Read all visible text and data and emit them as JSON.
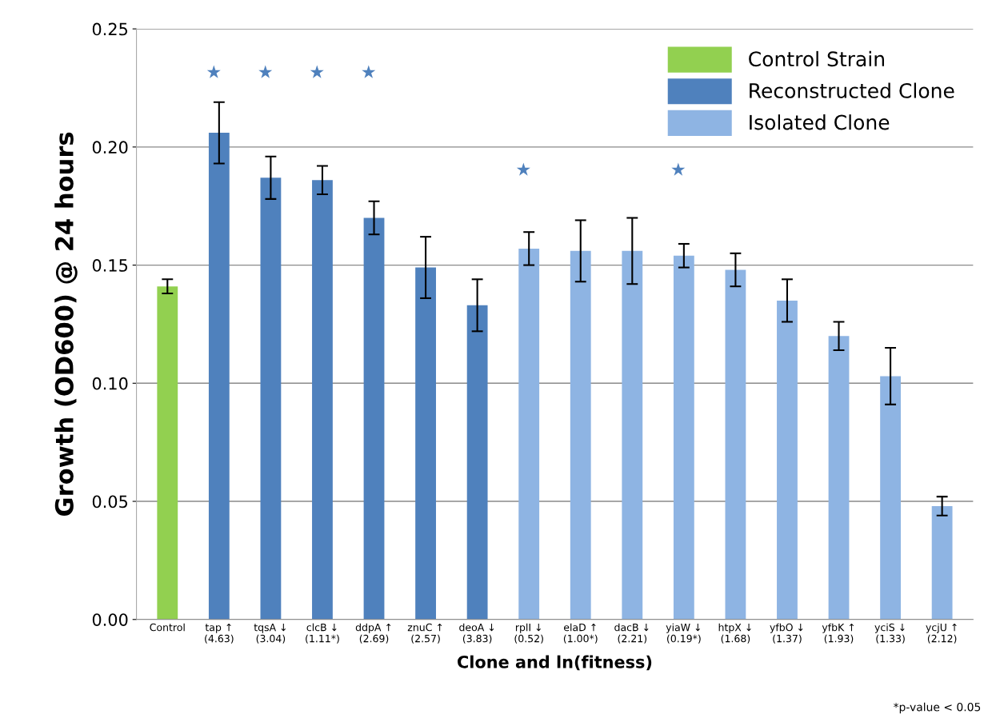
{
  "chart_data": {
    "type": "bar",
    "xlabel": "Clone and ln(fitness)",
    "ylabel": "Growth (OD600) @ 24 hours",
    "categories": [
      "Control",
      "tap ↑\n(4.63)",
      "tqsA ↓\n(3.04)",
      "clcB ↓\n(1.11*)",
      "ddpA ↑\n(2.69)",
      "znuC ↑\n(2.57)",
      "deoA ↓\n(3.83)",
      "rplI ↓\n(0.52)",
      "elaD ↑\n(1.00*)",
      "dacB ↓\n(2.21)",
      "yiaW ↓\n(0.19*)",
      "htpX ↓\n(1.68)",
      "yfbO ↓\n(1.37)",
      "yfbK ↑\n(1.93)",
      "yciS ↓\n(1.33)",
      "ycjU ↑\n(2.12)"
    ],
    "series": [
      {
        "name": "Control Strain",
        "color": "#92d050",
        "values": [
          0.141,
          null,
          null,
          null,
          null,
          null,
          null,
          null,
          null,
          null,
          null,
          null,
          null,
          null,
          null,
          null
        ],
        "errors": [
          0.003,
          null,
          null,
          null,
          null,
          null,
          null,
          null,
          null,
          null,
          null,
          null,
          null,
          null,
          null,
          null
        ]
      },
      {
        "name": "Reconstructed Clone",
        "color": "#4f81bd",
        "values": [
          null,
          0.206,
          0.187,
          0.186,
          0.17,
          0.149,
          0.133,
          null,
          null,
          null,
          null,
          null,
          null,
          null,
          null,
          null
        ],
        "errors": [
          null,
          0.013,
          0.009,
          0.006,
          0.007,
          0.013,
          0.011,
          null,
          null,
          null,
          null,
          null,
          null,
          null,
          null,
          null
        ]
      },
      {
        "name": "Isolated Clone",
        "color": "#8eb4e3",
        "values": [
          null,
          null,
          null,
          null,
          null,
          null,
          null,
          0.157,
          0.156,
          0.156,
          0.154,
          0.148,
          0.135,
          0.12,
          0.103,
          0.048
        ],
        "errors": [
          null,
          null,
          null,
          null,
          null,
          null,
          null,
          0.007,
          0.013,
          0.014,
          0.005,
          0.007,
          0.009,
          0.006,
          0.012,
          0.004
        ]
      }
    ],
    "ylim": [
      0,
      0.25
    ],
    "yticks": [
      {
        "value": 0,
        "label": "0.00"
      },
      {
        "value": 0.05,
        "label": "0.05"
      },
      {
        "value": 0.1,
        "label": "0.10"
      },
      {
        "value": 0.15,
        "label": "0.15"
      },
      {
        "value": 0.2,
        "label": "0.20"
      },
      {
        "value": 0.25,
        "label": "0.25"
      }
    ],
    "grid": "y",
    "legend": "top right",
    "annotations": [
      "★",
      "★",
      "★",
      "★",
      "★",
      "★",
      "*p-value < 0.05"
    ]
  }
}
